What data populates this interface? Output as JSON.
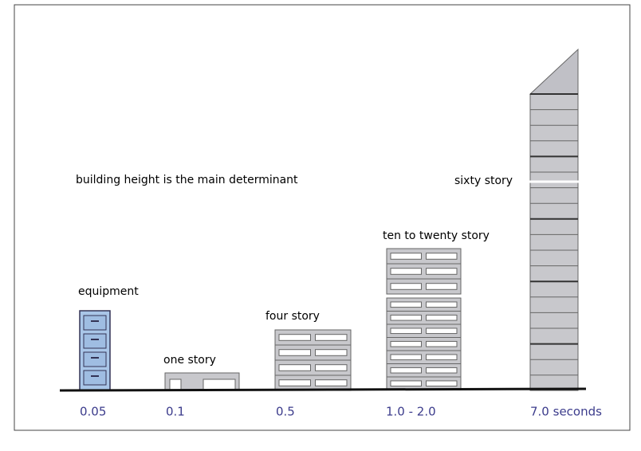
{
  "title": "building height is the main determinant",
  "buildings": [
    {
      "label": "equipment",
      "period": "0.05"
    },
    {
      "label": "one story",
      "period": "0.1"
    },
    {
      "label": "four story",
      "period": "0.5"
    },
    {
      "label": "ten to twenty story",
      "period": "1.0 - 2.0"
    },
    {
      "label": "sixty story",
      "period": "7.0 seconds"
    }
  ]
}
